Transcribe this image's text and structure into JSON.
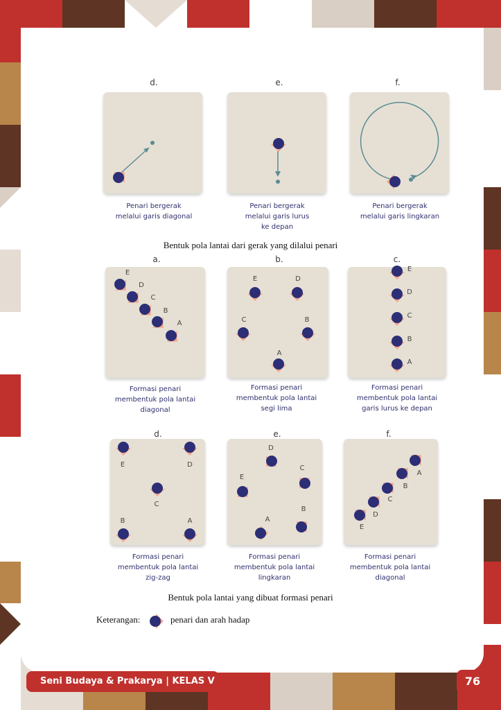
{
  "section1": {
    "items": [
      {
        "label": "d.",
        "caption": [
          "Penari bergerak",
          "melalui garis diagonal"
        ]
      },
      {
        "label": "e.",
        "caption": [
          "Penari bergerak",
          "melalui garis lurus",
          "ke depan"
        ]
      },
      {
        "label": "f.",
        "caption": [
          "Penari bergerak",
          "melalui garis lingkaran"
        ]
      }
    ],
    "heading": "Bentuk pola lantai dari gerak yang dilalui penari"
  },
  "section2": {
    "items": [
      {
        "label": "a.",
        "caption": [
          "Formasi penari",
          "membentuk pola lantai",
          "diagonal"
        ],
        "dancers": [
          "E",
          "D",
          "C",
          "B",
          "A"
        ]
      },
      {
        "label": "b.",
        "caption": [
          "Formasi penari",
          "membentuk pola lantai",
          "segi lima"
        ],
        "dancers": [
          "E",
          "D",
          "C",
          "B",
          "A"
        ]
      },
      {
        "label": "c.",
        "caption": [
          "Formasi penari",
          "membentuk pola lantai",
          "garis lurus ke depan"
        ],
        "dancers": [
          "E",
          "D",
          "C",
          "B",
          "A"
        ]
      },
      {
        "label": "d.",
        "caption": [
          "Formasi penari",
          "membentuk pola lantai",
          "zig-zag"
        ],
        "dancers": [
          "E",
          "D",
          "C",
          "B",
          "A"
        ]
      },
      {
        "label": "e.",
        "caption": [
          "Formasi penari",
          "membentuk pola lantai",
          "lingkaran"
        ],
        "dancers": [
          "D",
          "C",
          "E",
          "B",
          "A"
        ]
      },
      {
        "label": "f.",
        "caption": [
          "Formasi penari",
          "membentuk pola lantai",
          "diagonal"
        ],
        "dancers": [
          "A",
          "B",
          "C",
          "D",
          "E"
        ]
      }
    ],
    "heading": "Bentuk pola lantai yang dibuat formasi penari"
  },
  "legend": {
    "label": "Keterangan:",
    "text": "penari dan arah hadap"
  },
  "footer": {
    "title": "Seni Budaya & Prakarya | KELAS V",
    "page": "76"
  },
  "colors": {
    "dancer": "#2c2e76",
    "arrow": "#f2a58e",
    "box": "#e6e0d4",
    "accent": "#c0312d",
    "caption": "#2f2f6e",
    "path": "#5a8b95"
  },
  "icons": {
    "dancer": "dancer-icon",
    "arrow": "arrow-icon"
  }
}
